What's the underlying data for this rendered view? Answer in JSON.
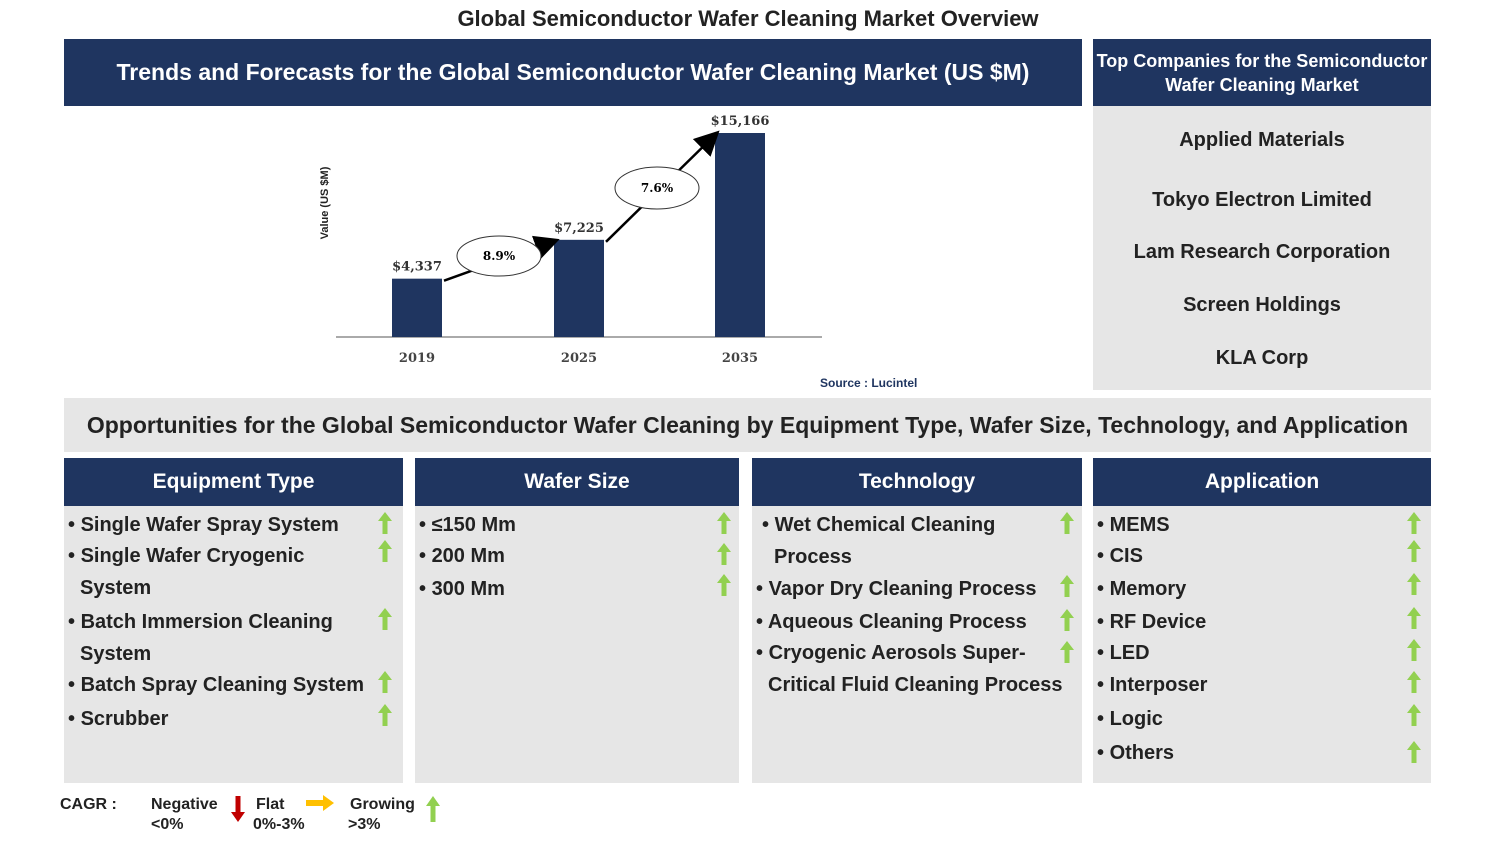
{
  "title": "Global Semiconductor Wafer Cleaning Market Overview",
  "chart_header": "Trends and Forecasts for the Global Semiconductor Wafer Cleaning Market (US $M)",
  "chart_data": {
    "type": "bar",
    "categories": [
      "2019",
      "2025",
      "2035"
    ],
    "values": [
      4337,
      7225,
      15166
    ],
    "value_labels": [
      "$4,337",
      "$7,225",
      "$15,166"
    ],
    "ylabel": "Value (US $M)",
    "cagr_labels": [
      "8.9%",
      "7.6%"
    ],
    "bar_color": "#1f3560",
    "grid": false
  },
  "source": "Source : Lucintel",
  "companies": {
    "header": "Top Companies for the Semiconductor Wafer Cleaning Market",
    "items": [
      "Applied Materials",
      "Tokyo Electron Limited",
      "Lam Research Corporation",
      "Screen Holdings",
      "KLA Corp"
    ]
  },
  "opportunities_title": "Opportunities for the Global Semiconductor Wafer Cleaning by Equipment Type, Wafer Size, Technology, and Application",
  "columns": [
    {
      "header": "Equipment Type",
      "items": [
        "Single Wafer Spray System",
        "Single Wafer Cryogenic System",
        "Batch Immersion Cleaning System",
        "Batch Spray Cleaning System",
        "Scrubber"
      ]
    },
    {
      "header": "Wafer Size",
      "items": [
        "≤150 Mm",
        "200 Mm",
        "300 Mm"
      ]
    },
    {
      "header": "Technology",
      "items": [
        "Wet Chemical Cleaning Process",
        "Vapor Dry Cleaning Process",
        "Aqueous Cleaning Process",
        "Cryogenic Aerosols Super-Critical Fluid Cleaning Process"
      ]
    },
    {
      "header": "Application",
      "items": [
        "MEMS",
        "CIS",
        "Memory",
        "RF Device",
        "LED",
        "Interposer",
        "Logic",
        "Others"
      ]
    }
  ],
  "legend": {
    "cagr": "CAGR :",
    "negative": "Negative",
    "negative_range": "<0%",
    "flat": "Flat",
    "flat_range": "0%-3%",
    "growing": "Growing",
    "growing_range": ">3%"
  },
  "colors": {
    "navy": "#1f3560",
    "green_arrow": "#92d050",
    "red_arrow": "#c00000",
    "orange_arrow": "#ffc000",
    "panel_gray": "#e6e6e6"
  }
}
